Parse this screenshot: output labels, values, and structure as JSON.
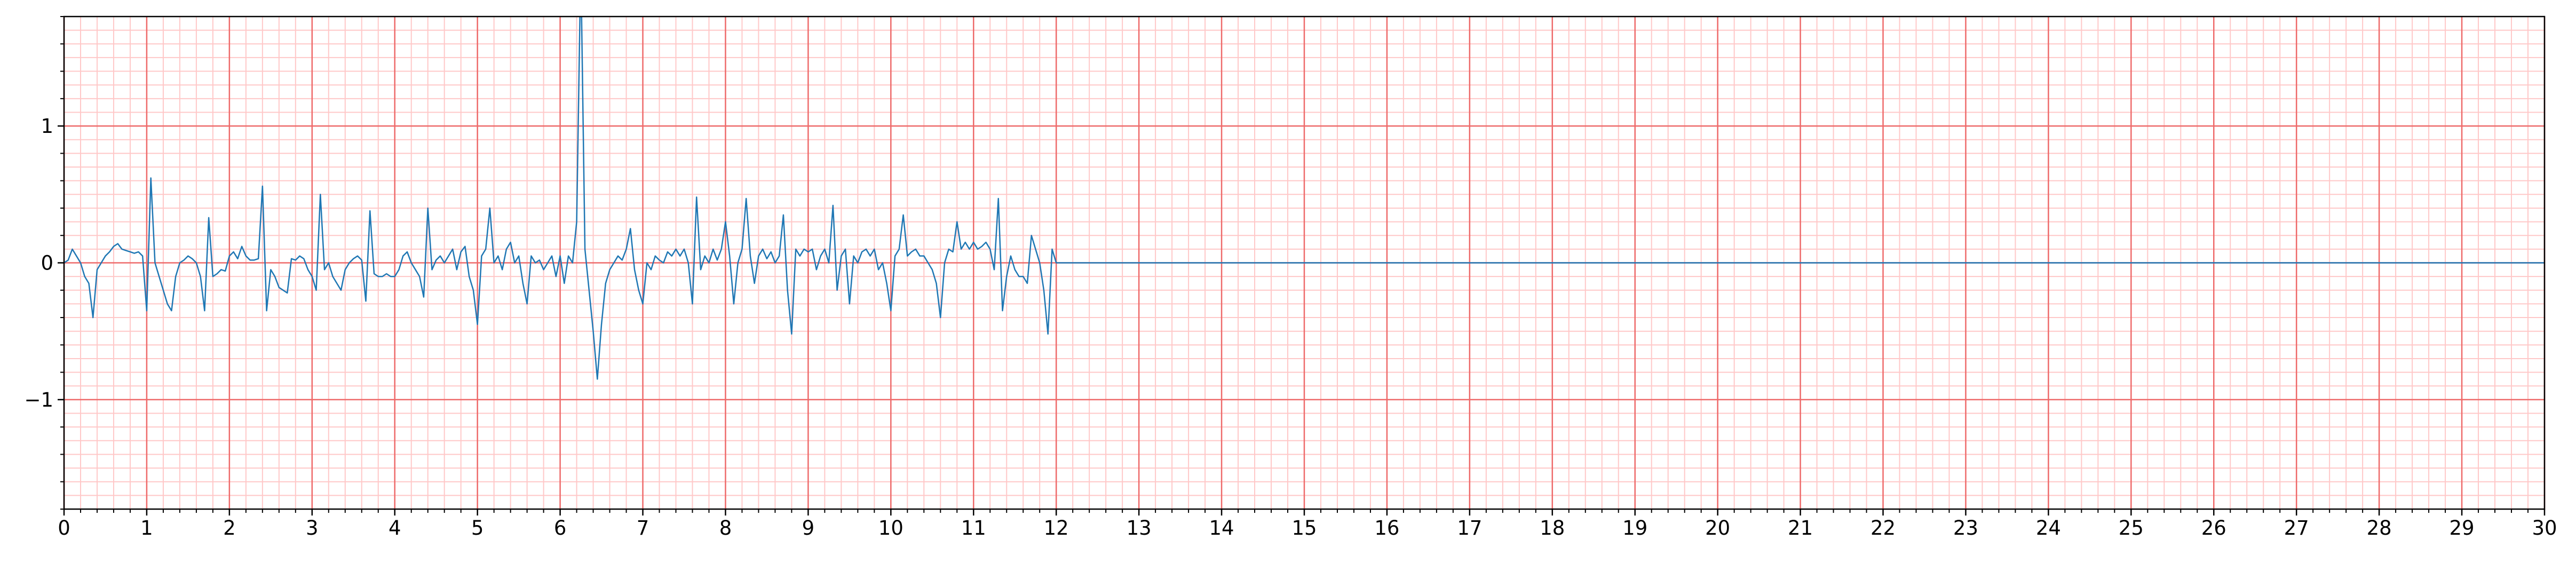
{
  "chart_data": {
    "type": "line",
    "x": [
      0,
      0.05,
      0.1,
      0.15,
      0.2,
      0.25,
      0.3,
      0.35,
      0.4,
      0.45,
      0.5,
      0.55,
      0.6,
      0.65,
      0.7,
      0.75,
      0.8,
      0.85,
      0.9,
      0.95,
      1,
      1.05,
      1.1,
      1.15,
      1.2,
      1.25,
      1.3,
      1.35,
      1.4,
      1.45,
      1.5,
      1.55,
      1.6,
      1.65,
      1.7,
      1.75,
      1.8,
      1.85,
      1.9,
      1.95,
      2,
      2.05,
      2.1,
      2.15,
      2.2,
      2.25,
      2.3,
      2.35,
      2.4,
      2.45,
      2.5,
      2.55,
      2.6,
      2.65,
      2.7,
      2.75,
      2.8,
      2.85,
      2.9,
      2.95,
      3,
      3.05,
      3.1,
      3.15,
      3.2,
      3.25,
      3.3,
      3.35,
      3.4,
      3.45,
      3.5,
      3.55,
      3.6,
      3.65,
      3.7,
      3.75,
      3.8,
      3.85,
      3.9,
      3.95,
      4,
      4.05,
      4.1,
      4.15,
      4.2,
      4.25,
      4.3,
      4.35,
      4.4,
      4.45,
      4.5,
      4.55,
      4.6,
      4.65,
      4.7,
      4.75,
      4.8,
      4.85,
      4.9,
      4.95,
      5,
      5.05,
      5.1,
      5.15,
      5.2,
      5.25,
      5.3,
      5.35,
      5.4,
      5.45,
      5.5,
      5.55,
      5.6,
      5.65,
      5.7,
      5.75,
      5.8,
      5.85,
      5.9,
      5.95,
      6,
      6.05,
      6.1,
      6.15,
      6.2,
      6.25,
      6.3,
      6.35,
      6.4,
      6.45,
      6.5,
      6.55,
      6.6,
      6.65,
      6.7,
      6.75,
      6.8,
      6.85,
      6.9,
      6.95,
      7,
      7.05,
      7.1,
      7.15,
      7.2,
      7.25,
      7.3,
      7.35,
      7.4,
      7.45,
      7.5,
      7.55,
      7.6,
      7.65,
      7.7,
      7.75,
      7.8,
      7.85,
      7.9,
      7.95,
      8,
      8.05,
      8.1,
      8.15,
      8.2,
      8.25,
      8.3,
      8.35,
      8.4,
      8.45,
      8.5,
      8.55,
      8.6,
      8.65,
      8.7,
      8.75,
      8.8,
      8.85,
      8.9,
      8.95,
      9,
      9.05,
      9.1,
      9.15,
      9.2,
      9.25,
      9.3,
      9.35,
      9.4,
      9.45,
      9.5,
      9.55,
      9.6,
      9.65,
      9.7,
      9.75,
      9.8,
      9.85,
      9.9,
      9.95,
      10,
      10.05,
      10.1,
      10.15,
      10.2,
      10.25,
      10.3,
      10.35,
      10.4,
      10.45,
      10.5,
      10.55,
      10.6,
      10.65,
      10.7,
      10.75,
      10.8,
      10.85,
      10.9,
      10.95,
      11,
      11.05,
      11.1,
      11.15,
      11.2,
      11.25,
      11.3,
      11.35,
      11.4,
      11.45,
      11.5,
      11.55,
      11.6,
      11.65,
      11.7,
      11.75,
      11.8,
      11.85,
      11.9,
      11.95,
      12,
      30
    ],
    "values": [
      0,
      0.02,
      0.1,
      0.05,
      0,
      -0.1,
      -0.15,
      -0.4,
      -0.05,
      0,
      0.05,
      0.08,
      0.12,
      0.14,
      0.1,
      0.09,
      0.08,
      0.07,
      0.08,
      0.05,
      -0.35,
      0.62,
      0,
      -0.1,
      -0.2,
      -0.3,
      -0.35,
      -0.1,
      0,
      0.02,
      0.05,
      0.03,
      0,
      -0.1,
      -0.35,
      0.33,
      -0.1,
      -0.08,
      -0.05,
      -0.06,
      0.05,
      0.08,
      0.03,
      0.12,
      0.05,
      0.02,
      0.02,
      0.03,
      0.56,
      -0.35,
      -0.05,
      -0.1,
      -0.18,
      -0.2,
      -0.22,
      0.03,
      0.02,
      0.05,
      0.03,
      -0.05,
      -0.1,
      -0.2,
      0.5,
      -0.05,
      0,
      -0.1,
      -0.15,
      -0.2,
      -0.05,
      0,
      0.03,
      0.05,
      0.02,
      -0.28,
      0.38,
      -0.08,
      -0.1,
      -0.1,
      -0.08,
      -0.1,
      -0.1,
      -0.05,
      0.05,
      0.08,
      0,
      -0.05,
      -0.1,
      -0.25,
      0.4,
      -0.05,
      0.02,
      0.05,
      0,
      0.05,
      0.1,
      -0.05,
      0.08,
      0.12,
      -0.1,
      -0.2,
      -0.45,
      0.05,
      0.1,
      0.4,
      0,
      0.05,
      -0.05,
      0.1,
      0.15,
      0,
      0.05,
      -0.15,
      -0.3,
      0.05,
      0,
      0.02,
      -0.05,
      0,
      0.05,
      -0.1,
      0.05,
      -0.15,
      0.05,
      0,
      0.3,
      2.2,
      0.1,
      -0.2,
      -0.5,
      -0.85,
      -0.45,
      -0.15,
      -0.05,
      0,
      0.05,
      0.02,
      0.1,
      0.25,
      -0.05,
      -0.2,
      -0.3,
      0,
      -0.05,
      0.05,
      0.02,
      0,
      0.08,
      0.05,
      0.1,
      0.05,
      0.1,
      0,
      -0.3,
      0.48,
      -0.05,
      0.05,
      0,
      0.1,
      0.02,
      0.1,
      0.3,
      0.05,
      -0.3,
      0,
      0.1,
      0.47,
      0.05,
      -0.15,
      0.05,
      0.1,
      0.03,
      0.08,
      0,
      0.05,
      0.35,
      -0.2,
      -0.52,
      0.1,
      0.05,
      0.1,
      0.08,
      0.1,
      -0.05,
      0.05,
      0.1,
      0,
      0.42,
      -0.2,
      0.05,
      0.1,
      -0.3,
      0.05,
      0,
      0.08,
      0.1,
      0.05,
      0.1,
      -0.05,
      0,
      -0.15,
      -0.35,
      0.05,
      0.1,
      0.35,
      0.05,
      0.08,
      0.1,
      0.05,
      0.05,
      0,
      -0.05,
      -0.15,
      -0.4,
      0,
      0.1,
      0.08,
      0.3,
      0.1,
      0.15,
      0.1,
      0.15,
      0.1,
      0.12,
      0.15,
      0.1,
      -0.05,
      0.47,
      -0.35,
      -0.1,
      0.05,
      -0.05,
      -0.1,
      -0.1,
      -0.15,
      0.2,
      0.1,
      0,
      -0.2,
      -0.52,
      0.1,
      0,
      0
    ],
    "color": "#1f77b4",
    "xlim": [
      0,
      30
    ],
    "xticks": [
      0,
      1,
      2,
      3,
      4,
      5,
      6,
      7,
      8,
      9,
      10,
      11,
      12,
      13,
      14,
      15,
      16,
      17,
      18,
      19,
      20,
      21,
      22,
      23,
      24,
      25,
      26,
      27,
      28,
      29,
      30
    ],
    "ylim": [
      -1.8,
      1.8
    ],
    "yticks": [
      {
        "value": -1,
        "label": "−1"
      },
      0,
      1
    ],
    "grid": true,
    "minor_grid": {
      "x": 0.2,
      "y": 0.1
    }
  }
}
